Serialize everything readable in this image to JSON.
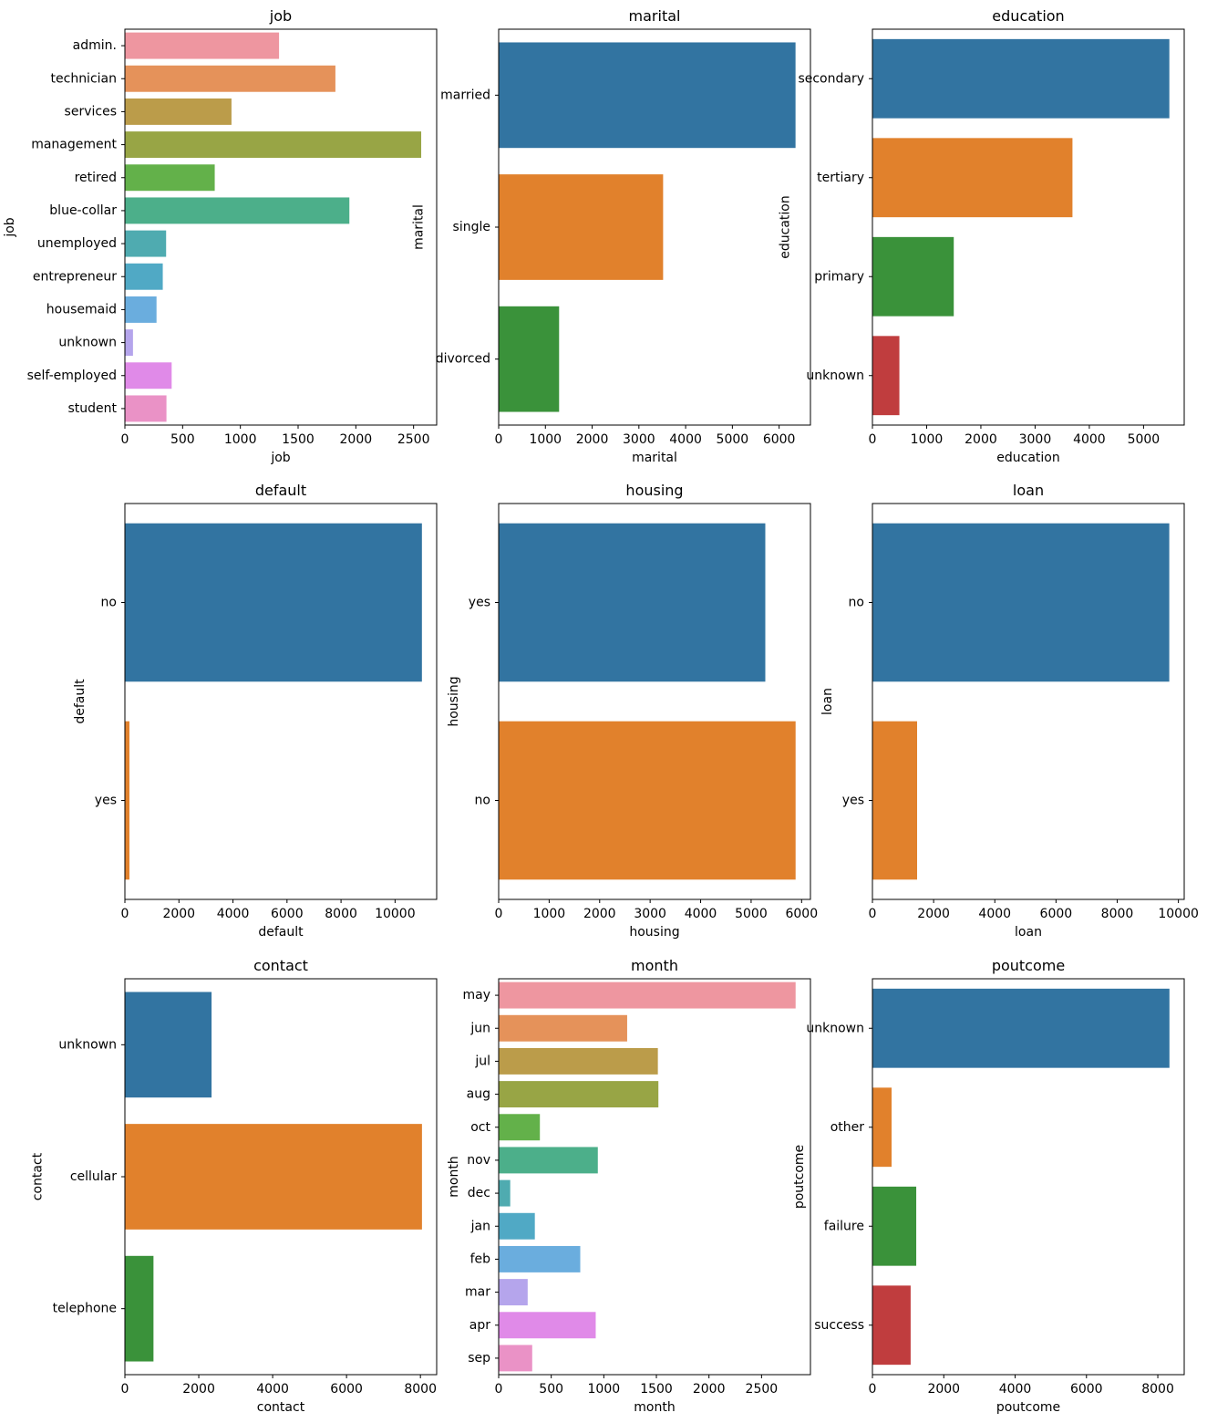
{
  "chart_data": [
    {
      "type": "bar",
      "orientation": "horizontal",
      "title": "job",
      "xlabel": "job",
      "ylabel": "job",
      "categories": [
        "admin.",
        "technician",
        "services",
        "management",
        "retired",
        "blue-collar",
        "unemployed",
        "entrepreneur",
        "housemaid",
        "unknown",
        "self-employed",
        "student"
      ],
      "values": [
        1335,
        1823,
        923,
        2566,
        778,
        1944,
        357,
        328,
        274,
        70,
        405,
        360
      ],
      "colors": [
        "#ee96a0",
        "#e5925a",
        "#bb9c4a",
        "#98a545",
        "#63b14a",
        "#4caf8a",
        "#4fabb0",
        "#50a9c5",
        "#6aadde",
        "#b5a5ec",
        "#e08ae8",
        "#ea92c6"
      ],
      "xlim": [
        0,
        2700
      ],
      "xticks": [
        0,
        500,
        1000,
        1500,
        2000,
        2500
      ]
    },
    {
      "type": "bar",
      "orientation": "horizontal",
      "title": "marital",
      "xlabel": "marital",
      "ylabel": "marital",
      "categories": [
        "married",
        "single",
        "divorced"
      ],
      "values": [
        6351,
        3518,
        1293
      ],
      "colors": [
        "#3274a1",
        "#e1812c",
        "#3a923a"
      ],
      "xlim": [
        0,
        6670
      ],
      "xticks": [
        0,
        1000,
        2000,
        3000,
        4000,
        5000,
        6000
      ]
    },
    {
      "type": "bar",
      "orientation": "horizontal",
      "title": "education",
      "xlabel": "education",
      "ylabel": "education",
      "categories": [
        "secondary",
        "tertiary",
        "primary",
        "unknown"
      ],
      "values": [
        5476,
        3689,
        1500,
        497
      ],
      "colors": [
        "#3274a1",
        "#e1812c",
        "#3a923a",
        "#c03d3e"
      ],
      "xlim": [
        0,
        5750
      ],
      "xticks": [
        0,
        1000,
        2000,
        3000,
        4000,
        5000
      ]
    },
    {
      "type": "bar",
      "orientation": "horizontal",
      "title": "default",
      "xlabel": "default",
      "ylabel": "default",
      "categories": [
        "no",
        "yes"
      ],
      "values": [
        10994,
        168
      ],
      "colors": [
        "#3274a1",
        "#e1812c"
      ],
      "xlim": [
        0,
        11540
      ],
      "xticks": [
        0,
        2000,
        4000,
        6000,
        8000,
        10000
      ]
    },
    {
      "type": "bar",
      "orientation": "horizontal",
      "title": "housing",
      "xlabel": "housing",
      "ylabel": "housing",
      "categories": [
        "yes",
        "no"
      ],
      "values": [
        5281,
        5881
      ],
      "colors": [
        "#3274a1",
        "#e1812c"
      ],
      "xlim": [
        0,
        6175
      ],
      "xticks": [
        0,
        1000,
        2000,
        3000,
        4000,
        5000,
        6000
      ]
    },
    {
      "type": "bar",
      "orientation": "horizontal",
      "title": "loan",
      "xlabel": "loan",
      "ylabel": "loan",
      "categories": [
        "no",
        "yes"
      ],
      "values": [
        9702,
        1460
      ],
      "colors": [
        "#3274a1",
        "#e1812c"
      ],
      "xlim": [
        0,
        10190
      ],
      "xticks": [
        0,
        2000,
        4000,
        6000,
        8000,
        10000
      ]
    },
    {
      "type": "bar",
      "orientation": "horizontal",
      "title": "contact",
      "xlabel": "contact",
      "ylabel": "contact",
      "categories": [
        "unknown",
        "cellular",
        "telephone"
      ],
      "values": [
        2346,
        8042,
        774
      ],
      "colors": [
        "#3274a1",
        "#e1812c",
        "#3a923a"
      ],
      "xlim": [
        0,
        8440
      ],
      "xticks": [
        0,
        2000,
        4000,
        6000,
        8000
      ]
    },
    {
      "type": "bar",
      "orientation": "horizontal",
      "title": "month",
      "xlabel": "month",
      "ylabel": "month",
      "categories": [
        "may",
        "jun",
        "jul",
        "aug",
        "oct",
        "nov",
        "dec",
        "jan",
        "feb",
        "mar",
        "apr",
        "sep"
      ],
      "values": [
        2824,
        1222,
        1514,
        1519,
        392,
        943,
        110,
        344,
        776,
        276,
        923,
        319
      ],
      "colors": [
        "#ee96a0",
        "#e5925a",
        "#bb9c4a",
        "#98a545",
        "#63b14a",
        "#4caf8a",
        "#4fabb0",
        "#50a9c5",
        "#6aadde",
        "#b5a5ec",
        "#e08ae8",
        "#ea92c6"
      ],
      "xlim": [
        0,
        2965
      ],
      "xticks": [
        0,
        500,
        1000,
        1500,
        2000,
        2500
      ]
    },
    {
      "type": "bar",
      "orientation": "horizontal",
      "title": "poutcome",
      "xlabel": "poutcome",
      "ylabel": "poutcome",
      "categories": [
        "unknown",
        "other",
        "failure",
        "success"
      ],
      "values": [
        8326,
        537,
        1228,
        1071
      ],
      "colors": [
        "#3274a1",
        "#e1812c",
        "#3a923a",
        "#c03d3e"
      ],
      "xlim": [
        0,
        8740
      ],
      "xticks": [
        0,
        2000,
        4000,
        6000,
        8000
      ]
    }
  ]
}
